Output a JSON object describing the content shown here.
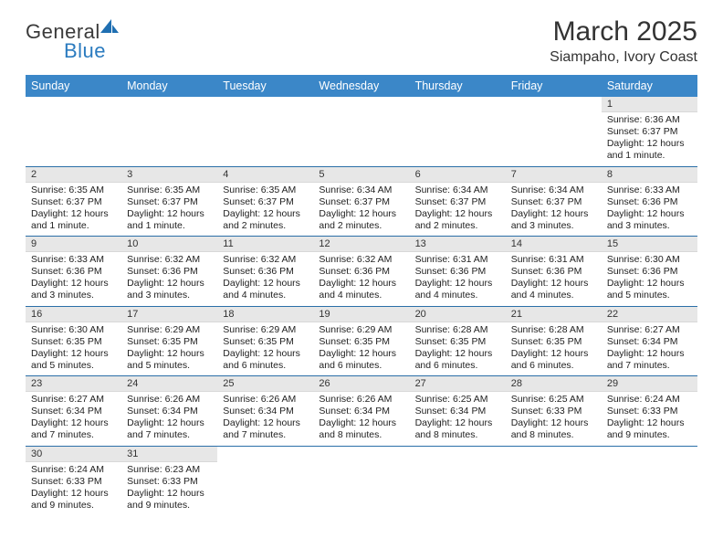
{
  "brand": {
    "name1": "General",
    "name2": "Blue"
  },
  "title": "March 2025",
  "location": "Siampaho, Ivory Coast",
  "colors": {
    "header_bg": "#3b87c8",
    "header_fg": "#ffffff",
    "daynum_bg": "#e7e7e7",
    "divider": "#2b6fa8",
    "logo_blue": "#2b7bbf"
  },
  "weekdays": [
    "Sunday",
    "Monday",
    "Tuesday",
    "Wednesday",
    "Thursday",
    "Friday",
    "Saturday"
  ],
  "weeks": [
    [
      null,
      null,
      null,
      null,
      null,
      null,
      {
        "n": "1",
        "sr": "Sunrise: 6:36 AM",
        "ss": "Sunset: 6:37 PM",
        "dl": "Daylight: 12 hours and 1 minute."
      }
    ],
    [
      {
        "n": "2",
        "sr": "Sunrise: 6:35 AM",
        "ss": "Sunset: 6:37 PM",
        "dl": "Daylight: 12 hours and 1 minute."
      },
      {
        "n": "3",
        "sr": "Sunrise: 6:35 AM",
        "ss": "Sunset: 6:37 PM",
        "dl": "Daylight: 12 hours and 1 minute."
      },
      {
        "n": "4",
        "sr": "Sunrise: 6:35 AM",
        "ss": "Sunset: 6:37 PM",
        "dl": "Daylight: 12 hours and 2 minutes."
      },
      {
        "n": "5",
        "sr": "Sunrise: 6:34 AM",
        "ss": "Sunset: 6:37 PM",
        "dl": "Daylight: 12 hours and 2 minutes."
      },
      {
        "n": "6",
        "sr": "Sunrise: 6:34 AM",
        "ss": "Sunset: 6:37 PM",
        "dl": "Daylight: 12 hours and 2 minutes."
      },
      {
        "n": "7",
        "sr": "Sunrise: 6:34 AM",
        "ss": "Sunset: 6:37 PM",
        "dl": "Daylight: 12 hours and 3 minutes."
      },
      {
        "n": "8",
        "sr": "Sunrise: 6:33 AM",
        "ss": "Sunset: 6:36 PM",
        "dl": "Daylight: 12 hours and 3 minutes."
      }
    ],
    [
      {
        "n": "9",
        "sr": "Sunrise: 6:33 AM",
        "ss": "Sunset: 6:36 PM",
        "dl": "Daylight: 12 hours and 3 minutes."
      },
      {
        "n": "10",
        "sr": "Sunrise: 6:32 AM",
        "ss": "Sunset: 6:36 PM",
        "dl": "Daylight: 12 hours and 3 minutes."
      },
      {
        "n": "11",
        "sr": "Sunrise: 6:32 AM",
        "ss": "Sunset: 6:36 PM",
        "dl": "Daylight: 12 hours and 4 minutes."
      },
      {
        "n": "12",
        "sr": "Sunrise: 6:32 AM",
        "ss": "Sunset: 6:36 PM",
        "dl": "Daylight: 12 hours and 4 minutes."
      },
      {
        "n": "13",
        "sr": "Sunrise: 6:31 AM",
        "ss": "Sunset: 6:36 PM",
        "dl": "Daylight: 12 hours and 4 minutes."
      },
      {
        "n": "14",
        "sr": "Sunrise: 6:31 AM",
        "ss": "Sunset: 6:36 PM",
        "dl": "Daylight: 12 hours and 4 minutes."
      },
      {
        "n": "15",
        "sr": "Sunrise: 6:30 AM",
        "ss": "Sunset: 6:36 PM",
        "dl": "Daylight: 12 hours and 5 minutes."
      }
    ],
    [
      {
        "n": "16",
        "sr": "Sunrise: 6:30 AM",
        "ss": "Sunset: 6:35 PM",
        "dl": "Daylight: 12 hours and 5 minutes."
      },
      {
        "n": "17",
        "sr": "Sunrise: 6:29 AM",
        "ss": "Sunset: 6:35 PM",
        "dl": "Daylight: 12 hours and 5 minutes."
      },
      {
        "n": "18",
        "sr": "Sunrise: 6:29 AM",
        "ss": "Sunset: 6:35 PM",
        "dl": "Daylight: 12 hours and 6 minutes."
      },
      {
        "n": "19",
        "sr": "Sunrise: 6:29 AM",
        "ss": "Sunset: 6:35 PM",
        "dl": "Daylight: 12 hours and 6 minutes."
      },
      {
        "n": "20",
        "sr": "Sunrise: 6:28 AM",
        "ss": "Sunset: 6:35 PM",
        "dl": "Daylight: 12 hours and 6 minutes."
      },
      {
        "n": "21",
        "sr": "Sunrise: 6:28 AM",
        "ss": "Sunset: 6:35 PM",
        "dl": "Daylight: 12 hours and 6 minutes."
      },
      {
        "n": "22",
        "sr": "Sunrise: 6:27 AM",
        "ss": "Sunset: 6:34 PM",
        "dl": "Daylight: 12 hours and 7 minutes."
      }
    ],
    [
      {
        "n": "23",
        "sr": "Sunrise: 6:27 AM",
        "ss": "Sunset: 6:34 PM",
        "dl": "Daylight: 12 hours and 7 minutes."
      },
      {
        "n": "24",
        "sr": "Sunrise: 6:26 AM",
        "ss": "Sunset: 6:34 PM",
        "dl": "Daylight: 12 hours and 7 minutes."
      },
      {
        "n": "25",
        "sr": "Sunrise: 6:26 AM",
        "ss": "Sunset: 6:34 PM",
        "dl": "Daylight: 12 hours and 7 minutes."
      },
      {
        "n": "26",
        "sr": "Sunrise: 6:26 AM",
        "ss": "Sunset: 6:34 PM",
        "dl": "Daylight: 12 hours and 8 minutes."
      },
      {
        "n": "27",
        "sr": "Sunrise: 6:25 AM",
        "ss": "Sunset: 6:34 PM",
        "dl": "Daylight: 12 hours and 8 minutes."
      },
      {
        "n": "28",
        "sr": "Sunrise: 6:25 AM",
        "ss": "Sunset: 6:33 PM",
        "dl": "Daylight: 12 hours and 8 minutes."
      },
      {
        "n": "29",
        "sr": "Sunrise: 6:24 AM",
        "ss": "Sunset: 6:33 PM",
        "dl": "Daylight: 12 hours and 9 minutes."
      }
    ],
    [
      {
        "n": "30",
        "sr": "Sunrise: 6:24 AM",
        "ss": "Sunset: 6:33 PM",
        "dl": "Daylight: 12 hours and 9 minutes."
      },
      {
        "n": "31",
        "sr": "Sunrise: 6:23 AM",
        "ss": "Sunset: 6:33 PM",
        "dl": "Daylight: 12 hours and 9 minutes."
      },
      null,
      null,
      null,
      null,
      null
    ]
  ]
}
